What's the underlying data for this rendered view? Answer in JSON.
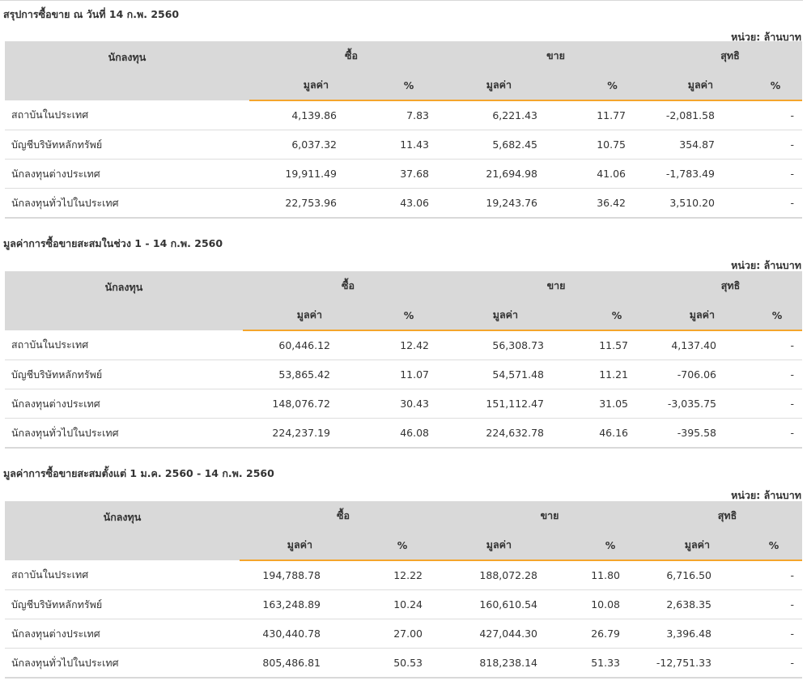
{
  "columns": {
    "investor": "นักลงทุน",
    "buy": "ซื้อ",
    "sell": "ขาย",
    "net": "สุทธิ",
    "value": "มูลค่า",
    "pct": "%"
  },
  "unit_label": "หน่วย: ล้านบาท",
  "colors": {
    "negative": "#e0242b",
    "positive": "#3c9a2b",
    "accent": "#f4a52c",
    "header_bg": "#d9d9d9"
  },
  "sections": [
    {
      "title": "สรุปการซื้อขาย ณ วันที่ 14 ก.พ. 2560",
      "rows": [
        {
          "investor": "สถาบันในประเทศ",
          "buy_value": "4,139.86",
          "buy_pct": "7.83",
          "sell_value": "6,221.43",
          "sell_pct": "11.77",
          "net_value": "-2,081.58",
          "net_sign": "neg",
          "net_pct": "-"
        },
        {
          "investor": "บัญชีบริษัทหลักทรัพย์",
          "buy_value": "6,037.32",
          "buy_pct": "11.43",
          "sell_value": "5,682.45",
          "sell_pct": "10.75",
          "net_value": "354.87",
          "net_sign": "pos",
          "net_pct": "-"
        },
        {
          "investor": "นักลงทุนต่างประเทศ",
          "buy_value": "19,911.49",
          "buy_pct": "37.68",
          "sell_value": "21,694.98",
          "sell_pct": "41.06",
          "net_value": "-1,783.49",
          "net_sign": "neg",
          "net_pct": "-"
        },
        {
          "investor": "นักลงทุนทั่วไปในประเทศ",
          "buy_value": "22,753.96",
          "buy_pct": "43.06",
          "sell_value": "19,243.76",
          "sell_pct": "36.42",
          "net_value": "3,510.20",
          "net_sign": "pos",
          "net_pct": "-"
        }
      ]
    },
    {
      "title": "มูลค่าการซื้อขายสะสมในช่วง 1 - 14 ก.พ. 2560",
      "rows": [
        {
          "investor": "สถาบันในประเทศ",
          "buy_value": "60,446.12",
          "buy_pct": "12.42",
          "sell_value": "56,308.73",
          "sell_pct": "11.57",
          "net_value": "4,137.40",
          "net_sign": "pos",
          "net_pct": "-"
        },
        {
          "investor": "บัญชีบริษัทหลักทรัพย์",
          "buy_value": "53,865.42",
          "buy_pct": "11.07",
          "sell_value": "54,571.48",
          "sell_pct": "11.21",
          "net_value": "-706.06",
          "net_sign": "neg",
          "net_pct": "-"
        },
        {
          "investor": "นักลงทุนต่างประเทศ",
          "buy_value": "148,076.72",
          "buy_pct": "30.43",
          "sell_value": "151,112.47",
          "sell_pct": "31.05",
          "net_value": "-3,035.75",
          "net_sign": "neg",
          "net_pct": "-"
        },
        {
          "investor": "นักลงทุนทั่วไปในประเทศ",
          "buy_value": "224,237.19",
          "buy_pct": "46.08",
          "sell_value": "224,632.78",
          "sell_pct": "46.16",
          "net_value": "-395.58",
          "net_sign": "neg",
          "net_pct": "-"
        }
      ]
    },
    {
      "title": "มูลค่าการซื้อขายสะสมตั้งแต่ 1 ม.ค. 2560 - 14 ก.พ. 2560",
      "rows": [
        {
          "investor": "สถาบันในประเทศ",
          "buy_value": "194,788.78",
          "buy_pct": "12.22",
          "sell_value": "188,072.28",
          "sell_pct": "11.80",
          "net_value": "6,716.50",
          "net_sign": "pos",
          "net_pct": "-"
        },
        {
          "investor": "บัญชีบริษัทหลักทรัพย์",
          "buy_value": "163,248.89",
          "buy_pct": "10.24",
          "sell_value": "160,610.54",
          "sell_pct": "10.08",
          "net_value": "2,638.35",
          "net_sign": "pos",
          "net_pct": "-"
        },
        {
          "investor": "นักลงทุนต่างประเทศ",
          "buy_value": "430,440.78",
          "buy_pct": "27.00",
          "sell_value": "427,044.30",
          "sell_pct": "26.79",
          "net_value": "3,396.48",
          "net_sign": "pos",
          "net_pct": "-"
        },
        {
          "investor": "นักลงทุนทั่วไปในประเทศ",
          "buy_value": "805,486.81",
          "buy_pct": "50.53",
          "sell_value": "818,238.14",
          "sell_pct": "51.33",
          "net_value": "-12,751.33",
          "net_sign": "neg",
          "net_pct": "-"
        }
      ]
    }
  ]
}
